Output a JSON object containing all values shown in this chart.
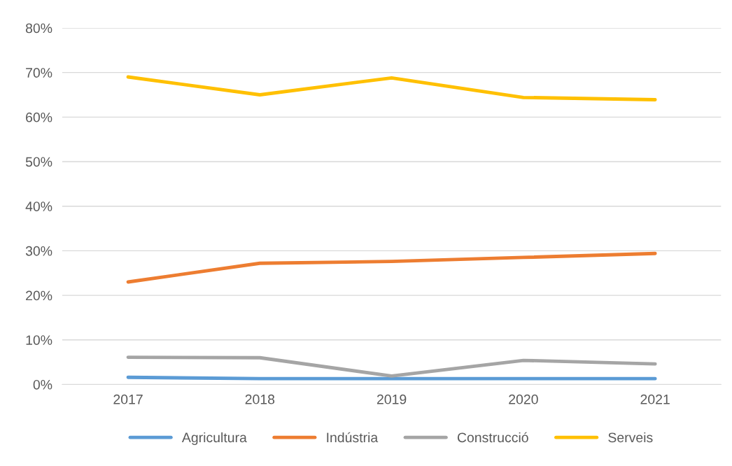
{
  "chart_data": {
    "type": "line",
    "categories": [
      "2017",
      "2018",
      "2019",
      "2020",
      "2021"
    ],
    "series": [
      {
        "name": "Agricultura",
        "color": "#5b9bd5",
        "values": [
          1.6,
          1.3,
          1.3,
          1.3,
          1.3
        ]
      },
      {
        "name": "Indústria",
        "color": "#ed7d31",
        "values": [
          23.0,
          27.2,
          27.6,
          28.5,
          29.4
        ]
      },
      {
        "name": "Construcció",
        "color": "#a5a5a5",
        "values": [
          6.1,
          6.0,
          1.9,
          5.4,
          4.6
        ]
      },
      {
        "name": "Serveis",
        "color": "#ffc000",
        "values": [
          69.0,
          65.0,
          68.8,
          64.4,
          63.9
        ]
      }
    ],
    "ylim": [
      0,
      80
    ],
    "yticks": [
      {
        "value": 0,
        "label": "0%"
      },
      {
        "value": 10,
        "label": "10%"
      },
      {
        "value": 20,
        "label": "20%"
      },
      {
        "value": 30,
        "label": "30%"
      },
      {
        "value": 40,
        "label": "40%"
      },
      {
        "value": 50,
        "label": "50%"
      },
      {
        "value": 60,
        "label": "60%"
      },
      {
        "value": 70,
        "label": "70%"
      },
      {
        "value": 80,
        "label": "80%"
      }
    ],
    "grid": "y",
    "legend": "bottom",
    "marker": "none",
    "line_style": "solid"
  }
}
